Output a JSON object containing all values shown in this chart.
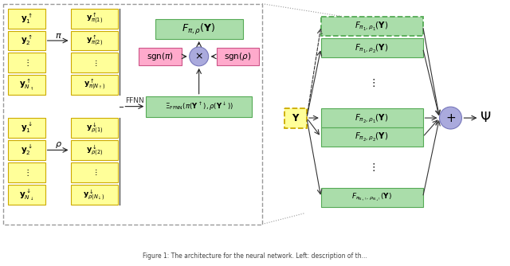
{
  "bg": "#ffffff",
  "yc": "#ffff99",
  "ye": "#ccaa00",
  "gc": "#aaddaa",
  "ge": "#55aa55",
  "pc": "#ffaacc",
  "pe": "#cc5588",
  "bc": "#aaaadd",
  "be": "#7777bb",
  "dc": "#999999"
}
